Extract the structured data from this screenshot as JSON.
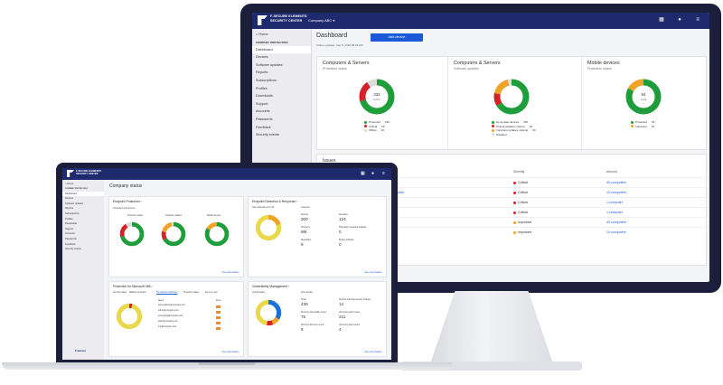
{
  "desktop": {
    "brand_line1": "F-SECURE ELEMENTS",
    "brand_line2": "SECURITY CENTER",
    "company": "Company ABC ▾",
    "sidebar": {
      "home": "Home",
      "org": "COMPANY PROTECTION",
      "items": [
        "Dashboard",
        "Devices",
        "Software updates",
        "Reports",
        "Subscriptions",
        "Profiles",
        "Downloads",
        "Support",
        "Accounts",
        "Passwords",
        "Feedback",
        "Security events"
      ]
    },
    "title": "Dashboard",
    "add_device": "Add device",
    "updated": "Status updated: Sep 8, 2020 08:09 AM",
    "cards": [
      {
        "title": "Computers & Servers",
        "subtitle": "Protection status",
        "center_value": "332",
        "center_label": "Active",
        "legend": [
          {
            "label": "Protected",
            "value": "236",
            "color": "#1e9e3a"
          },
          {
            "label": "Critical",
            "value": "66",
            "color": "#d6202a"
          },
          {
            "label": "Offline",
            "value": "32",
            "color": "#dcdcdc"
          }
        ],
        "segments": [
          236,
          66,
          32
        ]
      },
      {
        "title": "Computers & Servers",
        "subtitle": "Software updates",
        "legend": [
          {
            "label": "Up-to-date devices",
            "value": "220",
            "color": "#1e9e3a"
          },
          {
            "label": "Critical updates missing",
            "value": "40",
            "color": "#d6202a"
          },
          {
            "label": "Important updates missing",
            "value": "60",
            "color": "#f0a329"
          },
          {
            "label": "Disabled",
            "value": "",
            "color": "#dcdcdc"
          }
        ],
        "segments": [
          220,
          40,
          60,
          12
        ]
      },
      {
        "title": "Mobile devices",
        "subtitle": "Protection status",
        "center_value": "94",
        "center_label": "Total",
        "legend": [
          {
            "label": "Protected",
            "value": "78",
            "color": "#1e9e3a"
          },
          {
            "label": "Important",
            "value": "16",
            "color": "#f0a329"
          }
        ],
        "segments": [
          78,
          16
        ]
      }
    ],
    "issues": {
      "title": "Issues",
      "col_severity": "Severity",
      "col_amount": "Amount",
      "rows": [
        {
          "desc": "...",
          "severity": "Critical",
          "amount": "40 computers",
          "color": "#d6202a"
        },
        {
          "desc": "...on 15 computer",
          "severity": "Critical",
          "amount": "10 computers",
          "color": "#d6202a"
        },
        {
          "desc": "",
          "severity": "Critical",
          "amount": "1 computer",
          "color": "#d6202a"
        },
        {
          "desc": "",
          "severity": "Critical",
          "amount": "1 computer",
          "color": "#d6202a"
        },
        {
          "desc": "...ured",
          "severity": "Important",
          "amount": "40 computers",
          "color": "#f0a329"
        },
        {
          "desc": "",
          "severity": "Important",
          "amount": "10 computers",
          "color": "#f0a329"
        }
      ]
    }
  },
  "laptop": {
    "brand_line1": "F-SECURE ELEMENTS",
    "brand_line2": "SECURITY CENTER",
    "sidebar": {
      "home": "Home",
      "org": "COMPANY PROTECTION",
      "items": [
        "Dashboard",
        "Devices",
        "Software updates",
        "Reports",
        "Subscriptions",
        "Profiles",
        "Downloads",
        "Support",
        "Accounts",
        "Passwords",
        "Feedback",
        "Security events"
      ],
      "footer": "F-Secure"
    },
    "title": "Company status",
    "panels": {
      "endpoint_protection": {
        "title": "Endpoint Protection ›",
        "sub": "Computers and servers",
        "col1": "Protection status",
        "col2": "Software updates",
        "col3": "Mobile devices",
        "more": "See more details ›"
      },
      "edr": {
        "title": "Endpoint Detection & Response ›",
        "left_label": "Open detections by risk",
        "stats": [
          {
            "label": "Overview",
            "value": ""
          },
          {
            "label": "Devices",
            "value": "300"
          },
          {
            "label": "Activated",
            "value": "124"
          },
          {
            "label": "Telemetry",
            "value": "6M"
          },
          {
            "label": "Potentially unwanted software",
            "value": "0"
          },
          {
            "label": "Reputation",
            "value": "9"
          },
          {
            "label": "Broken software",
            "value": "0"
          }
        ],
        "more": "See more details ›"
      },
      "m365": {
        "title": "Protection for Microsoft 365 ›",
        "tabs": [
          "Security status",
          "Mailbox protection",
          "Top affected mailboxes",
          "Protection status",
          "Items by type"
        ],
        "col_name": "Name",
        "col_items": "Items",
        "rows": [
          "peter.watkins@company.com",
          "admin@company.com",
          "accounting@company.com",
          "sales@company.com",
          "info@company.com"
        ],
        "more": "See more details ›"
      },
      "vuln": {
        "title": "Vulnerability Management ›",
        "left_label": "Overall status",
        "stats": [
          {
            "label": "Scan activity",
            "value": ""
          },
          {
            "label": "Hosts",
            "value": "439"
          },
          {
            "label": "Reports with high severity findings",
            "value": "14"
          },
          {
            "label": "Running vulnerability scans",
            "value": "75"
          },
          {
            "label": "Upcoming patch scans",
            "value": "211"
          },
          {
            "label": "Running discovery scans",
            "value": "8"
          },
          {
            "label": "Upcoming asset scans",
            "value": "4"
          }
        ],
        "more": "See more details ›"
      }
    }
  }
}
